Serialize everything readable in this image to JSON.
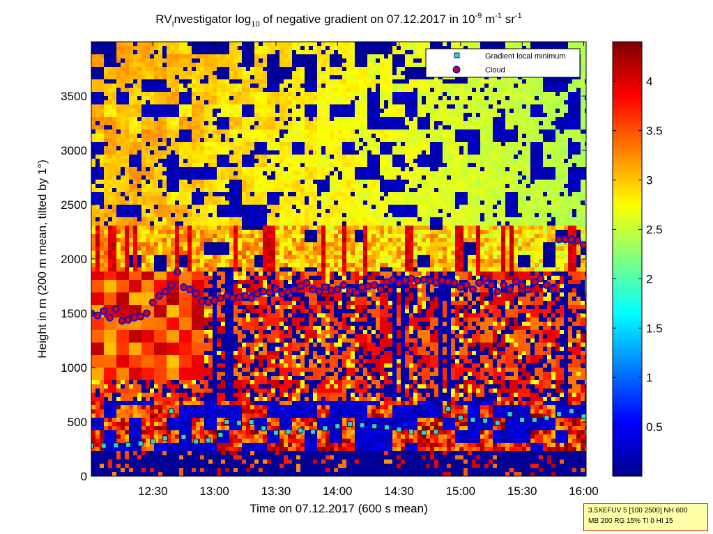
{
  "chart_data": {
    "type": "heatmap",
    "title": {
      "prefix": "RV",
      "sub1": "I",
      "middle": "nvestigator log",
      "sub2": "10",
      "after": " of negative gradient on 07.12.2017 in 10",
      "sup1": "-9",
      "unit1": " m",
      "sup2": "-1",
      "unit2": " sr",
      "sup3": "-1"
    },
    "xlabel": "Time on 07.12.2017 (600 s mean)",
    "ylabel": "Height in m (200 m mean, tilted by 1°)",
    "x_ticks": [
      "12:30",
      "13:00",
      "13:30",
      "14:00",
      "14:30",
      "15:00",
      "15:30",
      "16:00"
    ],
    "x_tick_hours": [
      12.5,
      13.0,
      13.5,
      14.0,
      14.5,
      15.0,
      15.5,
      16.0
    ],
    "xlim_hours": [
      12.0,
      16.02
    ],
    "y_ticks": [
      "0",
      "500",
      "1000",
      "1500",
      "2000",
      "2500",
      "3000",
      "3500"
    ],
    "y_tick_values": [
      0,
      500,
      1000,
      1500,
      2000,
      2500,
      3000,
      3500
    ],
    "ylim": [
      0,
      4000
    ],
    "colorbar": {
      "ticks": [
        "0.5",
        "1",
        "1.5",
        "2",
        "2.5",
        "3",
        "3.5",
        "4"
      ],
      "tick_values": [
        0.5,
        1,
        1.5,
        2,
        2.5,
        3,
        3.5,
        4
      ],
      "range": [
        0,
        4.4
      ],
      "colormap": "jet"
    },
    "legend": {
      "placement": "top-right",
      "entries": [
        {
          "label": "Gradient local minimum",
          "marker": "square",
          "color": "#30d0d0"
        },
        {
          "label": "Cloud",
          "marker": "circle",
          "color": "#e00000",
          "edge": "#1010d0"
        }
      ]
    },
    "series": [
      {
        "name": "Gradient local minimum",
        "x": [
          12.0,
          12.1,
          12.2,
          12.3,
          12.4,
          12.5,
          12.6,
          12.65,
          12.75,
          12.85,
          12.95,
          13.05,
          13.1,
          13.2,
          13.3,
          13.4,
          13.5,
          13.6,
          13.7,
          13.8,
          13.9,
          14.0,
          14.1,
          14.2,
          14.3,
          14.4,
          14.5,
          14.6,
          14.7,
          14.8,
          14.9,
          15.0,
          15.1,
          15.2,
          15.3,
          15.4,
          15.5,
          15.6,
          15.7,
          15.8,
          15.9,
          16.0
        ],
        "y": [
          280,
          280,
          285,
          290,
          300,
          320,
          350,
          600,
          360,
          320,
          330,
          380,
          500,
          490,
          500,
          440,
          400,
          410,
          420,
          410,
          440,
          460,
          480,
          470,
          460,
          450,
          430,
          410,
          400,
          410,
          620,
          540,
          520,
          510,
          490,
          570,
          520,
          520,
          540,
          570,
          600,
          550
        ]
      },
      {
        "name": "Cloud",
        "x": [
          12.0,
          12.05,
          12.1,
          12.15,
          12.2,
          12.25,
          12.3,
          12.35,
          12.4,
          12.45,
          12.5,
          12.55,
          12.6,
          12.65,
          12.7,
          12.75,
          12.8,
          12.85,
          12.9,
          12.95,
          13.0,
          13.05,
          13.1,
          13.15,
          13.2,
          13.25,
          13.3,
          13.35,
          13.4,
          13.45,
          13.5,
          13.55,
          13.6,
          13.65,
          13.7,
          13.75,
          13.8,
          13.85,
          13.9,
          13.95,
          14.0,
          14.05,
          14.1,
          14.15,
          14.2,
          14.25,
          14.3,
          14.35,
          14.4,
          14.45,
          14.5,
          14.55,
          14.6,
          14.65,
          14.7,
          14.75,
          14.8,
          14.85,
          14.9,
          14.95,
          15.0,
          15.05,
          15.1,
          15.15,
          15.2,
          15.25,
          15.3,
          15.35,
          15.4,
          15.45,
          15.5,
          15.55,
          15.6,
          15.65,
          15.7,
          15.75,
          15.8,
          15.85,
          15.9,
          15.95,
          16.0
        ],
        "y": [
          1500,
          1480,
          1520,
          1460,
          1540,
          1430,
          1440,
          1460,
          1470,
          1500,
          1600,
          1660,
          1700,
          1760,
          1880,
          1740,
          1720,
          1680,
          1610,
          1600,
          1620,
          1640,
          1660,
          1640,
          1650,
          1660,
          1640,
          1680,
          1700,
          1690,
          1720,
          1680,
          1700,
          1720,
          1750,
          1780,
          1720,
          1700,
          1740,
          1710,
          1720,
          1760,
          1710,
          1690,
          1740,
          1750,
          1760,
          1720,
          1790,
          1810,
          1780,
          1800,
          1820,
          1800,
          1810,
          1800,
          1780,
          1800,
          1790,
          1780,
          1740,
          1760,
          1720,
          1780,
          1820,
          1760,
          1700,
          1760,
          1720,
          1790,
          1760,
          1720,
          1790,
          1820,
          1760,
          1720,
          2180,
          2180,
          2180,
          2170,
          2130
        ]
      }
    ]
  },
  "info_box": {
    "line1": "3.5XEFUV 5 [100 2500] NH 600",
    "line2": "MB 200 RG 15% TI 0 HI 15"
  }
}
